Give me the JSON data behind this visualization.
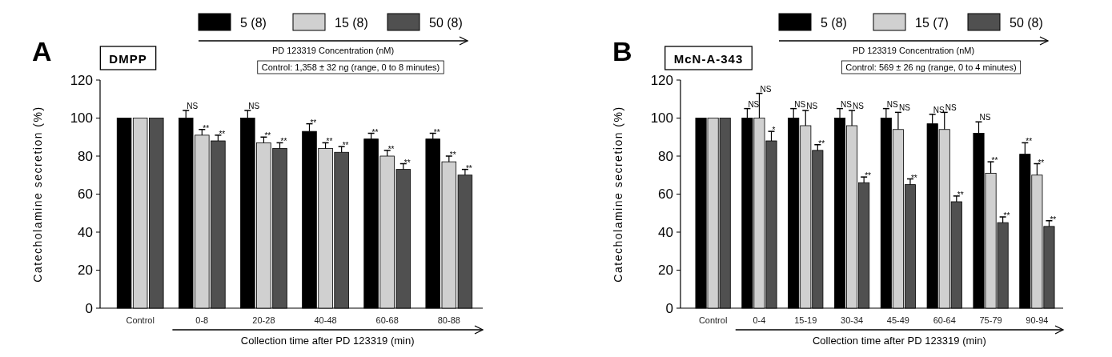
{
  "chart_data": [
    {
      "type": "bar",
      "title": "DMPP",
      "annotations": [
        "A",
        "Control: 1,358 ± 32 ng (range, 0 to 8 minutes)"
      ],
      "categories": [
        "Control",
        "0-8",
        "20-28",
        "40-48",
        "60-68",
        "80-88"
      ],
      "series": [
        {
          "name": "5 (8)",
          "color": "#000000",
          "values": [
            100,
            100,
            100,
            93,
            89,
            89
          ],
          "errors": [
            null,
            4,
            4,
            4,
            3,
            3
          ],
          "value_labels": [
            null,
            "NS",
            "NS",
            "**",
            "**",
            "**"
          ]
        },
        {
          "name": "15 (8)",
          "color": "#d0d0d0",
          "values": [
            100,
            91,
            87,
            84,
            80,
            77
          ],
          "errors": [
            null,
            3,
            3,
            3,
            3,
            3
          ],
          "value_labels": [
            null,
            "**",
            "**",
            "**",
            "**",
            "**"
          ]
        },
        {
          "name": "50 (8)",
          "color": "#505050",
          "values": [
            100,
            88,
            84,
            82,
            73,
            70
          ],
          "errors": [
            null,
            3,
            3,
            3,
            3,
            3
          ],
          "value_labels": [
            null,
            "**",
            "**",
            "**",
            "**",
            "**"
          ]
        }
      ],
      "ylim": [
        0,
        120
      ],
      "yticks": [
        0,
        20,
        40,
        60,
        80,
        100,
        120
      ],
      "ylabel": "Catecholamine secretion (%)",
      "xlabel": "Collection time after PD 123319 (min)",
      "legend": "top",
      "legend_title": "PD 123319 Concentration (nM)"
    },
    {
      "type": "bar",
      "title": "McN-A-343",
      "annotations": [
        "B",
        "Control: 569 ± 26 ng (range, 0 to 4 minutes)"
      ],
      "categories": [
        "Control",
        "0-4",
        "15-19",
        "30-34",
        "45-49",
        "60-64",
        "75-79",
        "90-94"
      ],
      "series": [
        {
          "name": "5 (8)",
          "color": "#000000",
          "values": [
            100,
            100,
            100,
            100,
            100,
            97,
            92,
            81
          ],
          "errors": [
            null,
            5,
            5,
            5,
            5,
            5,
            6,
            6
          ],
          "value_labels": [
            null,
            "NS",
            "NS",
            "NS",
            "NS",
            "NS",
            "NS",
            "**"
          ]
        },
        {
          "name": "15 (7)",
          "color": "#d0d0d0",
          "values": [
            100,
            100,
            96,
            96,
            94,
            94,
            71,
            70
          ],
          "errors": [
            null,
            13,
            8,
            8,
            9,
            9,
            6,
            6
          ],
          "value_labels": [
            null,
            "NS",
            "NS",
            "NS",
            "NS",
            "NS",
            "**",
            "**"
          ]
        },
        {
          "name": "50 (8)",
          "color": "#505050",
          "values": [
            100,
            88,
            83,
            66,
            65,
            56,
            45,
            43
          ],
          "errors": [
            null,
            5,
            3,
            3,
            3,
            3,
            3,
            3
          ],
          "value_labels": [
            null,
            "*",
            "**",
            "**",
            "**",
            "**",
            "**",
            "**"
          ]
        }
      ],
      "ylim": [
        0,
        120
      ],
      "yticks": [
        0,
        20,
        40,
        60,
        80,
        100,
        120
      ],
      "ylabel": "Catecholamine secretion (%)",
      "xlabel": "Collection time after PD 123319 (min)",
      "legend": "top",
      "legend_title": "PD 123319 Concentration (nM)"
    }
  ]
}
